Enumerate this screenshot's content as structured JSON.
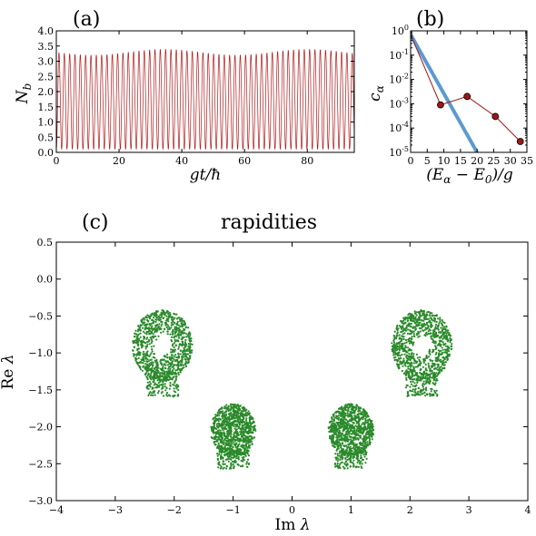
{
  "colors": {
    "trace": "#b01818",
    "green": "#2a8a2a",
    "blue": "#5b9bd0",
    "marker": "#a01515"
  },
  "chart_data": [
    {
      "type": "line",
      "panel_label": "(a)",
      "xlabel": "gt/ħ",
      "ylabel": "N_b",
      "xlim": [
        0,
        95
      ],
      "ylim": [
        0.0,
        4.0
      ],
      "x_ticks": [
        "0",
        "20",
        "40",
        "60",
        "80"
      ],
      "y_ticks": [
        "0.0",
        "0.5",
        "1.0",
        "1.5",
        "2.0",
        "2.5",
        "3.0",
        "3.5",
        "4.0"
      ],
      "series": [
        {
          "description_of_shape": "periodic",
          "oscillation_min": 0.1,
          "oscillation_max": 3.3,
          "period": 1.7
        }
      ]
    },
    {
      "type": "line",
      "panel_label": "(b)",
      "xlabel": "(E_α − E_0)/g",
      "ylabel": "c_α",
      "yscale": "log",
      "xlim": [
        0,
        35
      ],
      "ylim": [
        1e-05,
        1
      ],
      "x_ticks": [
        "0",
        "5",
        "10",
        "15",
        "20",
        "25",
        "30",
        "35"
      ],
      "y_ticks": [
        "10^-5",
        "10^-4",
        "10^-3",
        "10^-2",
        "10^-1",
        "10^0"
      ],
      "series": [
        {
          "x": [
            0,
            9,
            17,
            25.5,
            33
          ],
          "y": [
            0.7,
            0.0009,
            0.002,
            0.0003,
            2.8e-05
          ]
        },
        {
          "x": [
            0,
            20
          ],
          "y": [
            0.7,
            1e-05
          ]
        }
      ]
    },
    {
      "type": "scatter",
      "panel_label": "(c)",
      "title": "rapidities",
      "xlabel": "Im λ",
      "ylabel": "Re λ",
      "xlim": [
        -4,
        4
      ],
      "ylim": [
        -3.0,
        0.5
      ],
      "x_ticks": [
        "−4",
        "−3",
        "−2",
        "−1",
        "0",
        "1",
        "2",
        "3",
        "4"
      ],
      "y_ticks": [
        "−3.0",
        "−2.5",
        "−2.0",
        "−1.5",
        "−1.0",
        "−0.5",
        "0.0",
        "0.5"
      ],
      "clusters": [
        {
          "center": [
            -2.2,
            -0.9
          ],
          "radius": 0.6
        },
        {
          "center": [
            2.2,
            -0.9
          ],
          "radius": 0.6
        },
        {
          "center": [
            -1.0,
            -2.05
          ],
          "radius": 0.45
        },
        {
          "center": [
            1.0,
            -2.05
          ],
          "radius": 0.45
        }
      ]
    }
  ]
}
